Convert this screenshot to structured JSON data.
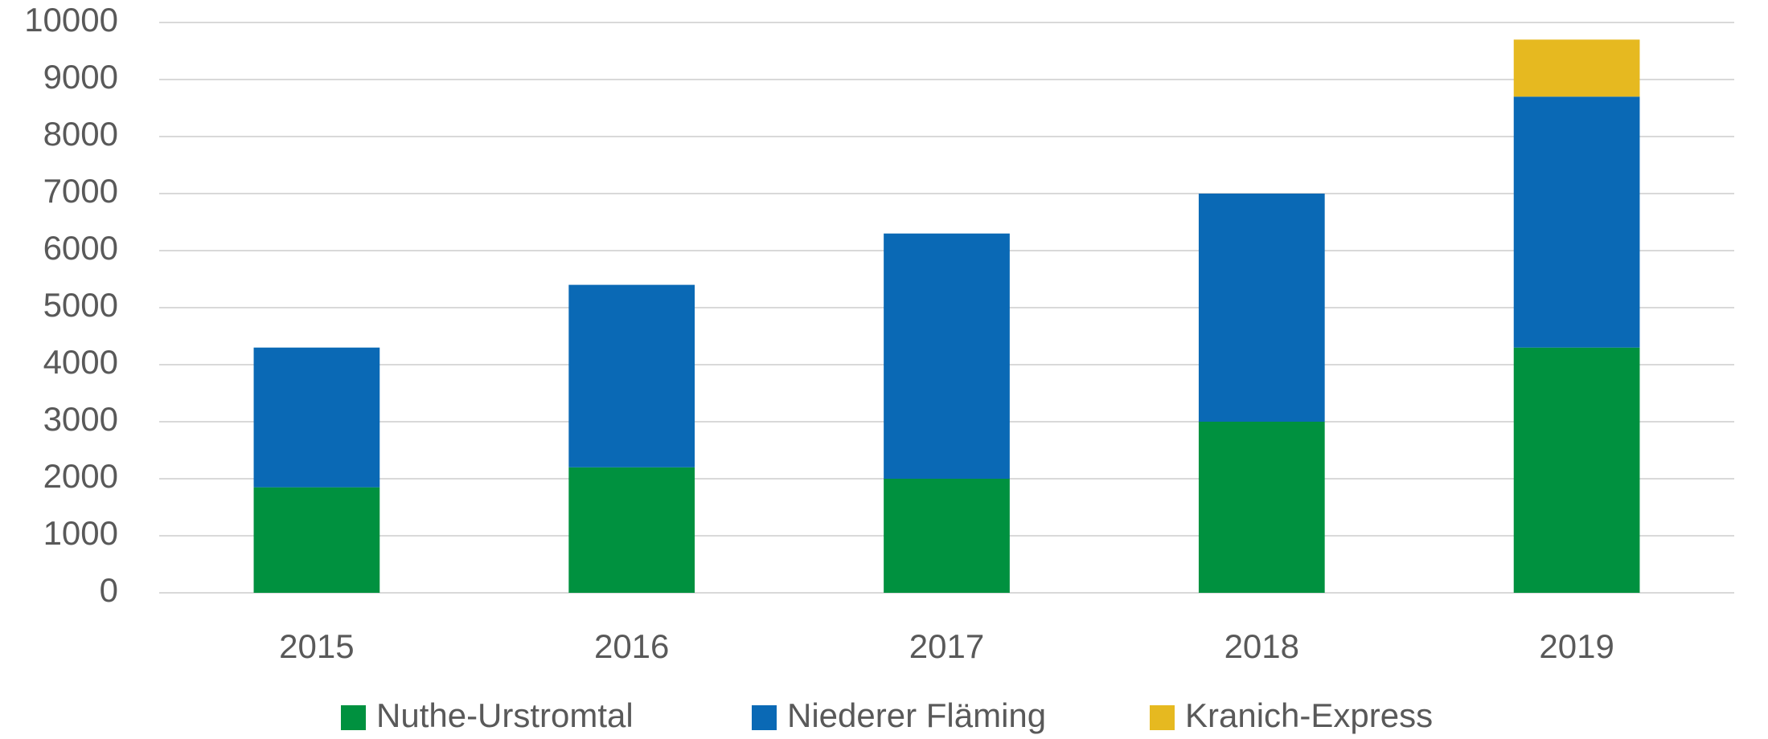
{
  "chart_data": {
    "type": "stacked_bar",
    "categories": [
      "2015",
      "2016",
      "2017",
      "2018",
      "2019"
    ],
    "series": [
      {
        "name": "Nuthe-Urstromtal",
        "color": "#00913f",
        "values": [
          1850,
          2200,
          2000,
          3000,
          4300
        ]
      },
      {
        "name": "Niederer Fläming",
        "color": "#0a69b5",
        "values": [
          2450,
          3200,
          4300,
          4000,
          4400
        ]
      },
      {
        "name": "Kranich-Express",
        "color": "#e6b920",
        "values": [
          0,
          0,
          0,
          0,
          1000
        ]
      }
    ],
    "ylim": [
      0,
      10000
    ],
    "yticks": [
      0,
      1000,
      2000,
      3000,
      4000,
      5000,
      6000,
      7000,
      8000,
      9000,
      10000
    ],
    "grid": true,
    "legend": "bottom"
  }
}
